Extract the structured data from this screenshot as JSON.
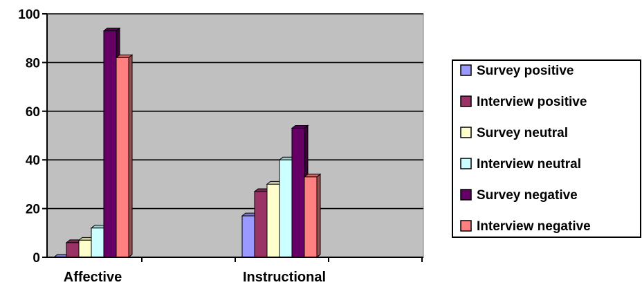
{
  "chart_data": {
    "type": "bar",
    "categories": [
      "Affective",
      "Instructional"
    ],
    "series": [
      {
        "name": "Survey positive",
        "values": [
          0,
          17
        ],
        "color": "#9999FF"
      },
      {
        "name": "Interview positive",
        "values": [
          6,
          27
        ],
        "color": "#993366"
      },
      {
        "name": "Survey neutral",
        "values": [
          7,
          30
        ],
        "color": "#FFFFCC"
      },
      {
        "name": "Interview neutral",
        "values": [
          12,
          40
        ],
        "color": "#CCFFFF"
      },
      {
        "name": "Survey negative",
        "values": [
          93,
          53
        ],
        "color": "#660066"
      },
      {
        "name": "Interview negative",
        "values": [
          82,
          33
        ],
        "color": "#FF8080"
      }
    ],
    "ylim": [
      0,
      100
    ],
    "yticks": [
      "0",
      "20",
      "40",
      "60",
      "80",
      "100"
    ],
    "grid": true,
    "legend_position": "right",
    "plot_background": "#C0C0C0"
  }
}
